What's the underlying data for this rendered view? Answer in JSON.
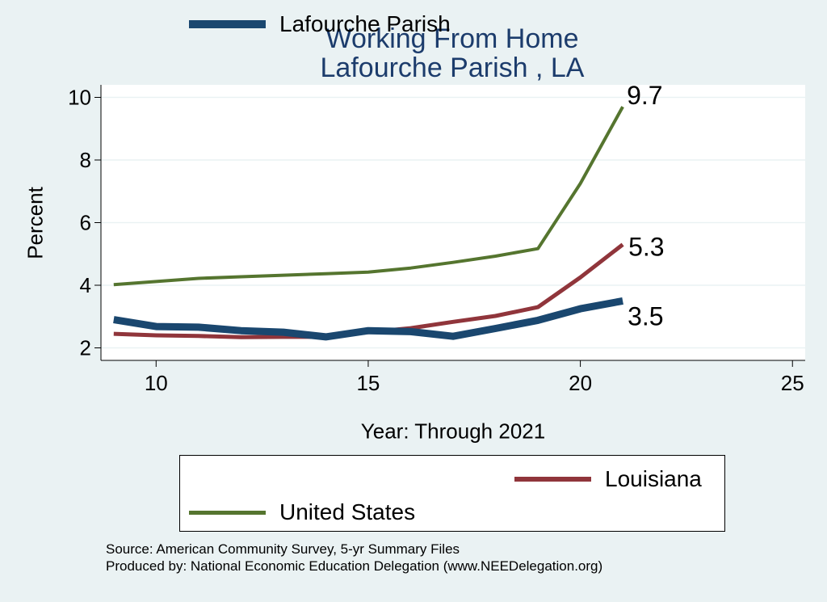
{
  "chart_data": {
    "type": "line",
    "title": "Working From Home",
    "subtitle": "Lafourche Parish , LA",
    "xlabel": "Year: Through 2021",
    "ylabel": "Percent",
    "xlim": [
      8.7,
      25.3
    ],
    "ylim": [
      1.6,
      10.4
    ],
    "x_ticks": [
      10,
      15,
      20,
      25
    ],
    "y_ticks": [
      2,
      4,
      6,
      8,
      10
    ],
    "grid": true,
    "legend_position": "bottom",
    "series": [
      {
        "name": "Lafourche Parish",
        "color": "#1a476f",
        "x": [
          9,
          10,
          11,
          12,
          13,
          14,
          15,
          16,
          17,
          18,
          19,
          20,
          21
        ],
        "values": [
          2.9,
          2.68,
          2.66,
          2.55,
          2.5,
          2.35,
          2.55,
          2.52,
          2.37,
          2.62,
          2.88,
          3.25,
          3.5
        ],
        "end_label": "3.5"
      },
      {
        "name": "Louisiana",
        "color": "#90353b",
        "x": [
          9,
          10,
          11,
          12,
          13,
          14,
          15,
          16,
          17,
          18,
          19,
          20,
          21
        ],
        "values": [
          2.45,
          2.4,
          2.38,
          2.34,
          2.35,
          2.35,
          2.5,
          2.63,
          2.83,
          3.02,
          3.3,
          4.25,
          5.3
        ],
        "end_label": "5.3"
      },
      {
        "name": "United States",
        "color": "#55752f",
        "x": [
          9,
          10,
          11,
          12,
          13,
          14,
          15,
          16,
          17,
          18,
          19,
          20,
          21
        ],
        "values": [
          4.02,
          4.12,
          4.22,
          4.27,
          4.32,
          4.37,
          4.42,
          4.55,
          4.73,
          4.93,
          5.17,
          7.25,
          9.7
        ],
        "end_label": "9.7"
      }
    ]
  },
  "legend": {
    "items": [
      "Lafourche Parish",
      "Louisiana",
      "United States"
    ]
  },
  "notes": {
    "source": "Source: American Community Survey, 5-yr Summary Files",
    "produced": "Produced by: National Economic Education Delegation (www.NEEDelegation.org)"
  }
}
